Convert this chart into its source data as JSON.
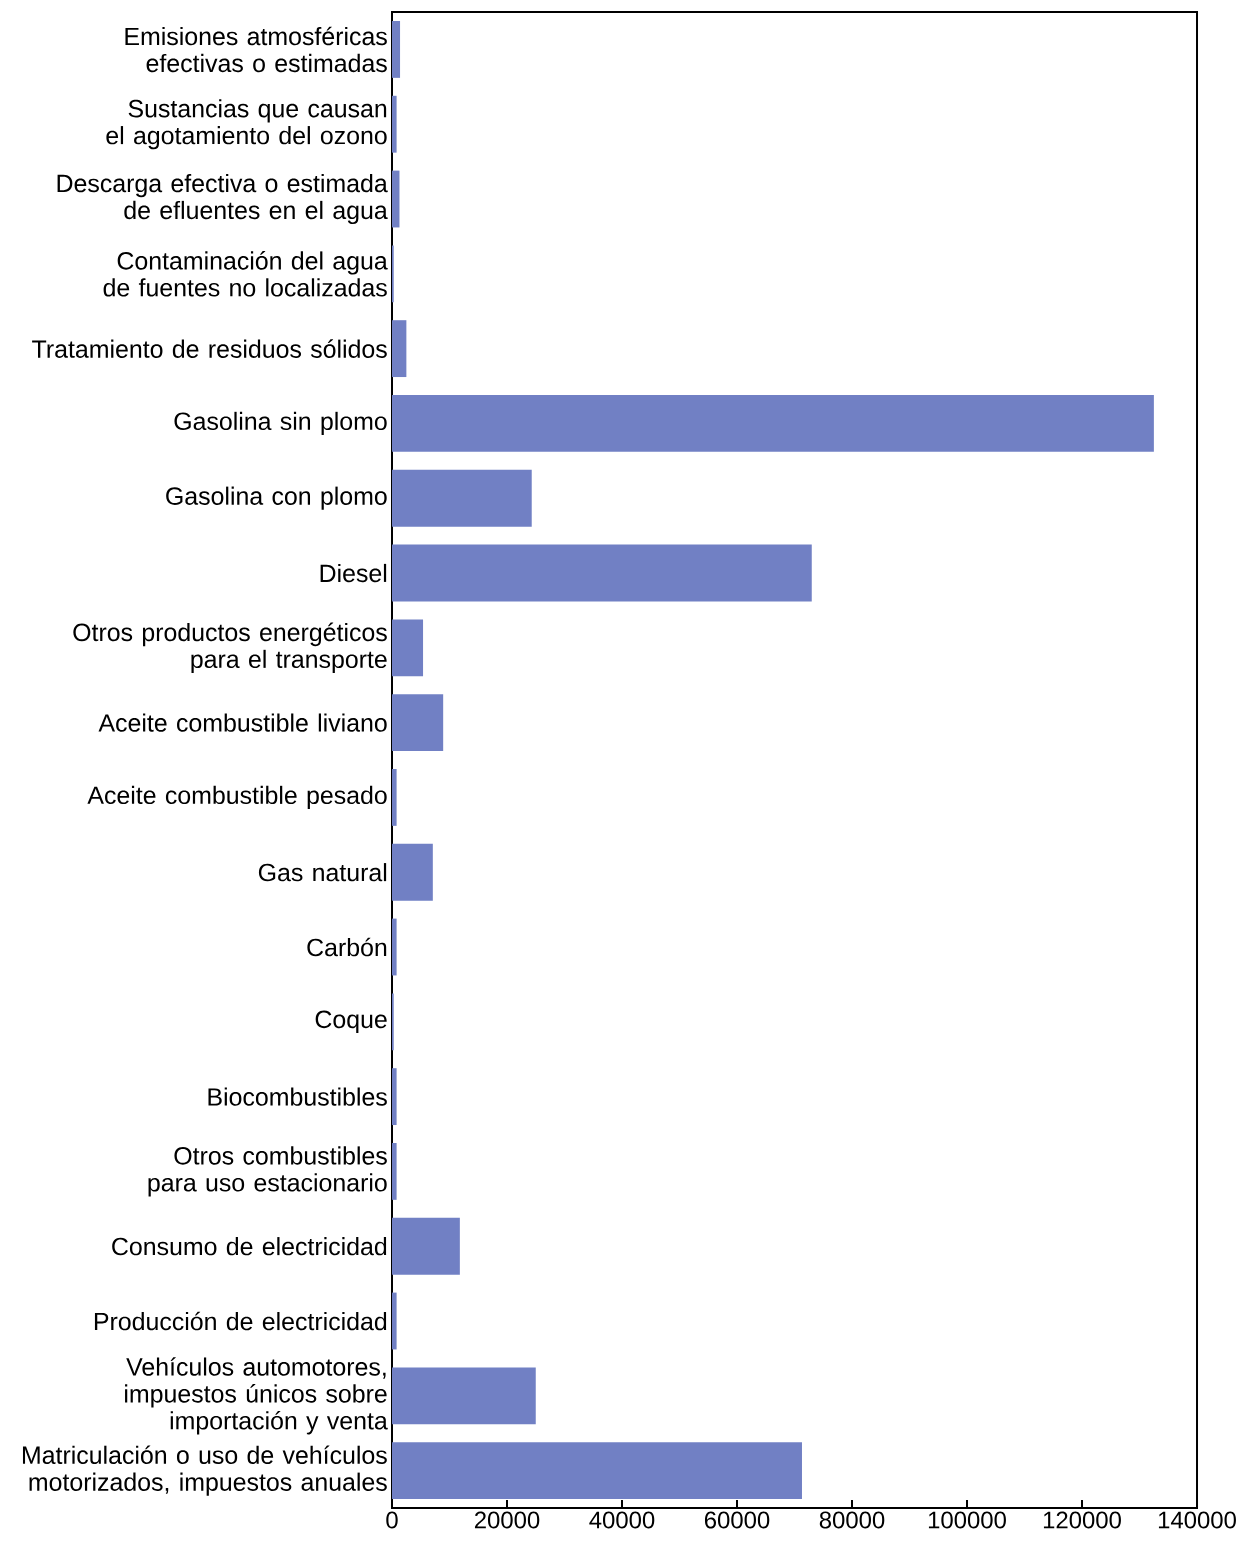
{
  "chart_data": {
    "type": "bar",
    "orientation": "horizontal",
    "color": "#7180c4",
    "categories": [
      "Emisiones atmosféricas efectivas o estimadas",
      "Sustancias que causan el agotamiento del ozono",
      "Descarga efectiva o estimada de efluentes en el agua",
      "Contaminación del agua de fuentes no localizadas",
      "Tratamiento de residuos sólidos",
      "Gasolina sin plomo",
      "Gasolina con plomo",
      "Diesel",
      "Otros productos energéticos para el transporte",
      "Aceite combustible liviano",
      "Aceite combustible pesado",
      "Gas natural",
      "Carbón",
      "Coque",
      "Biocombustibles",
      "Otros combustibles para uso estacionario",
      "Consumo de electricidad",
      "Producción de electricidad",
      "Vehículos automotores, impuestos únicos sobre importación y venta",
      "Matriculación o uso de vehículos motorizados, impuestos anuales"
    ],
    "values": [
      1400,
      800,
      1300,
      300,
      2500,
      132500,
      24300,
      73000,
      5400,
      8900,
      800,
      7100,
      800,
      300,
      800,
      800,
      11800,
      800,
      25000,
      71300
    ],
    "xlim": [
      0,
      140000
    ],
    "xticks": [
      0,
      20000,
      40000,
      60000,
      80000,
      100000,
      120000,
      140000
    ]
  }
}
